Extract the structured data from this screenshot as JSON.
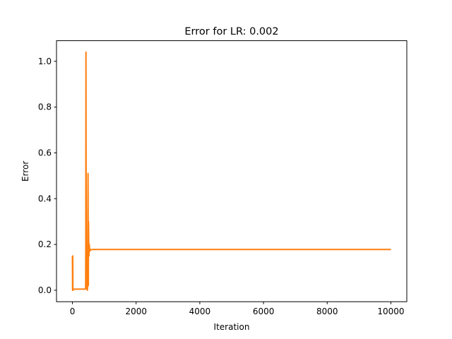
{
  "chart_data": {
    "type": "line",
    "title": "Error for LR: 0.002",
    "xlabel": "Iteration",
    "ylabel": "Error",
    "xlim": [
      -500,
      10500
    ],
    "ylim": [
      -0.05,
      1.09
    ],
    "xticks": [
      0,
      2000,
      4000,
      6000,
      8000,
      10000
    ],
    "xtick_labels": [
      "0",
      "2000",
      "4000",
      "6000",
      "8000",
      "10000"
    ],
    "yticks": [
      0.0,
      0.2,
      0.4,
      0.6,
      0.8,
      1.0
    ],
    "ytick_labels": [
      "0.0",
      "0.2",
      "0.4",
      "0.6",
      "0.8",
      "1.0"
    ],
    "grid": false,
    "legend": "none",
    "series": [
      {
        "color": "#ff7f0e",
        "x": [
          0,
          5,
          10,
          15,
          20,
          30,
          60,
          100,
          200,
          300,
          400,
          415,
          420,
          425,
          430,
          440,
          450,
          455,
          460,
          470,
          480,
          490,
          500,
          505,
          510,
          520,
          530,
          540,
          550,
          570,
          600,
          700,
          1000,
          2000,
          4000,
          6000,
          8000,
          10000
        ],
        "y": [
          0.15,
          0.0,
          0.15,
          0.005,
          0.0,
          0.004,
          0.005,
          0.005,
          0.005,
          0.005,
          0.005,
          0.01,
          0.2,
          1.04,
          0.5,
          0.02,
          0.005,
          0.1,
          0.02,
          0.0,
          0.1,
          0.51,
          0.02,
          0.3,
          0.22,
          0.15,
          0.2,
          0.17,
          0.18,
          0.175,
          0.178,
          0.178,
          0.178,
          0.178,
          0.178,
          0.178,
          0.178,
          0.178
        ]
      }
    ]
  }
}
